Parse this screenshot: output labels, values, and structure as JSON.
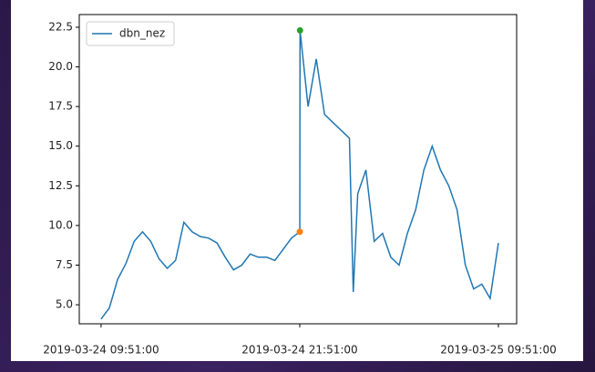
{
  "chart_data": {
    "type": "line",
    "x": [
      "2019-03-24 09:51:00",
      "2019-03-24 10:21:00",
      "2019-03-24 10:51:00",
      "2019-03-24 11:21:00",
      "2019-03-24 11:51:00",
      "2019-03-24 12:21:00",
      "2019-03-24 12:51:00",
      "2019-03-24 13:21:00",
      "2019-03-24 13:51:00",
      "2019-03-24 14:21:00",
      "2019-03-24 14:51:00",
      "2019-03-24 15:21:00",
      "2019-03-24 15:51:00",
      "2019-03-24 16:21:00",
      "2019-03-24 16:51:00",
      "2019-03-24 17:21:00",
      "2019-03-24 17:51:00",
      "2019-03-24 18:21:00",
      "2019-03-24 18:51:00",
      "2019-03-24 19:21:00",
      "2019-03-24 19:51:00",
      "2019-03-24 20:21:00",
      "2019-03-24 20:51:00",
      "2019-03-24 21:21:00",
      "2019-03-24 21:51:00",
      "2019-03-24 21:52:00",
      "2019-03-24 22:21:00",
      "2019-03-24 22:51:00",
      "2019-03-24 23:21:00",
      "2019-03-24 23:51:00",
      "2019-03-25 00:21:00",
      "2019-03-25 00:51:00",
      "2019-03-25 01:05:00",
      "2019-03-25 01:21:00",
      "2019-03-25 01:51:00",
      "2019-03-25 02:21:00",
      "2019-03-25 02:51:00",
      "2019-03-25 03:21:00",
      "2019-03-25 03:51:00",
      "2019-03-25 04:21:00",
      "2019-03-25 04:51:00",
      "2019-03-25 05:21:00",
      "2019-03-25 05:51:00",
      "2019-03-25 06:21:00",
      "2019-03-25 06:51:00",
      "2019-03-25 07:21:00",
      "2019-03-25 07:51:00",
      "2019-03-25 08:21:00",
      "2019-03-25 08:51:00",
      "2019-03-25 09:21:00",
      "2019-03-25 09:51:00"
    ],
    "series": [
      {
        "name": "dbn_nez",
        "color": "#1f77b4",
        "values": [
          4.1,
          4.8,
          6.6,
          7.6,
          9.0,
          9.6,
          9.0,
          7.9,
          7.3,
          7.8,
          10.2,
          9.6,
          9.3,
          9.2,
          8.9,
          8.0,
          7.2,
          7.5,
          8.2,
          8.0,
          8.0,
          7.8,
          8.5,
          9.2,
          9.6,
          22.3,
          17.5,
          20.5,
          17.0,
          16.5,
          16.0,
          15.5,
          5.8,
          12.0,
          13.5,
          9.0,
          9.5,
          8.0,
          7.5,
          9.5,
          11.0,
          13.5,
          15.0,
          13.5,
          12.5,
          11.0,
          7.5,
          6.0,
          6.3,
          5.4,
          8.9
        ]
      }
    ],
    "markers": [
      {
        "x": "2019-03-24 21:51:00",
        "y": 9.6,
        "color": "#ff7f0e"
      },
      {
        "x": "2019-03-24 21:52:00",
        "y": 22.3,
        "color": "#2ca02c"
      }
    ],
    "xlim": [
      "2019-03-24 08:32:00",
      "2019-03-25 10:57:00"
    ],
    "xticks": [
      "2019-03-24 09:51:00",
      "2019-03-24 21:51:00",
      "2019-03-25 09:51:00"
    ],
    "ylim": [
      3.8,
      23.3
    ],
    "yticks": [
      {
        "value": 5,
        "label": "5.0"
      },
      7.5,
      {
        "value": 10,
        "label": "10.0"
      },
      12.5,
      {
        "value": 15,
        "label": "15.0"
      },
      17.5,
      {
        "value": 20,
        "label": "20.0"
      },
      22.5
    ],
    "legend": "upper left"
  }
}
